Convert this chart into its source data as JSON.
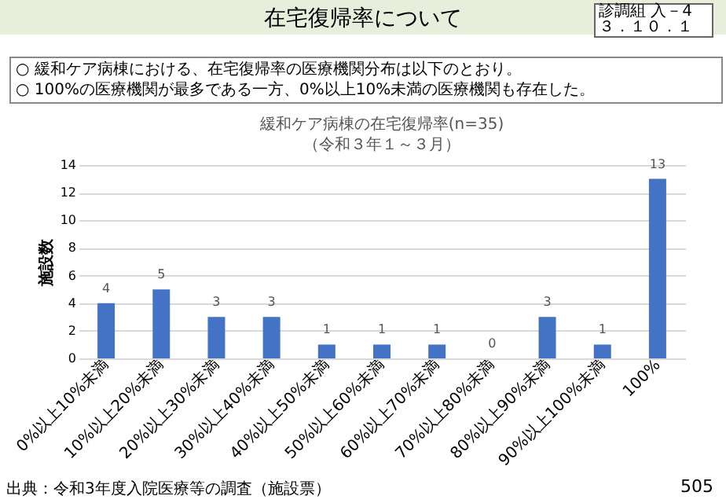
{
  "chart_data": {
    "type": "bar",
    "title": "緩和ケア病棟の在宅復帰率(n=35)",
    "subtitle": "（令和３年１～３月）",
    "ylabel": "施設数",
    "categories": [
      "0%以上10%未満",
      "10%以上20%未満",
      "20%以上30%未満",
      "30%以上40%未満",
      "40%以上50%未満",
      "50%以上60%未満",
      "60%以上70%未満",
      "70%以上80%未満",
      "80%以上90%未満",
      "90%以上100%未満",
      "100%"
    ],
    "values": [
      4,
      5,
      3,
      3,
      1,
      1,
      1,
      0,
      3,
      1,
      13
    ],
    "color": "#4472c4",
    "ylim": [
      0,
      14
    ],
    "yticks": [
      0,
      2,
      4,
      6,
      8,
      10,
      12,
      14
    ],
    "grid": "y",
    "data_labels": true,
    "annotations": [
      "在宅復帰率について",
      "診調組 入－4 ３．１０．１",
      "○ 緩和ケア病棟における、在宅復帰率の医療機関分布は以下のとおり。",
      "○ 100%の医療機関が最多である一方、0%以上10%未満の医療機関も存在した。",
      "出典：令和3年度入院医療等の調査（施設票）",
      "505"
    ]
  }
}
